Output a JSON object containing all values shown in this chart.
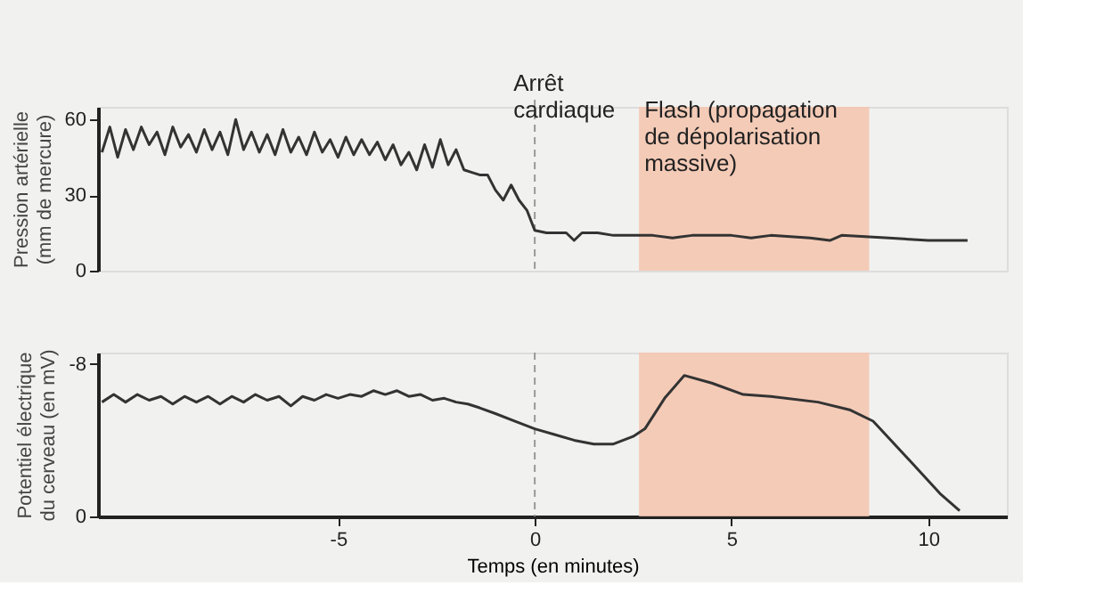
{
  "chart_data": [
    {
      "type": "line",
      "ylabel": "Pression artérielle\n(mm de mercure)",
      "xlim": [
        -11.1,
        12.0
      ],
      "ylim": [
        0,
        65
      ],
      "yticks": [
        0,
        30,
        60
      ],
      "tick_labels": "y",
      "grid": false,
      "x": [
        -11,
        -10.8,
        -10.6,
        -10.4,
        -10.2,
        -10,
        -9.8,
        -9.6,
        -9.4,
        -9.2,
        -9,
        -8.8,
        -8.6,
        -8.4,
        -8.2,
        -8,
        -7.8,
        -7.6,
        -7.4,
        -7.2,
        -7,
        -6.8,
        -6.6,
        -6.4,
        -6.2,
        -6,
        -5.8,
        -5.6,
        -5.4,
        -5.2,
        -5,
        -4.8,
        -4.6,
        -4.4,
        -4.2,
        -4,
        -3.8,
        -3.6,
        -3.4,
        -3.2,
        -3,
        -2.8,
        -2.6,
        -2.4,
        -2.2,
        -2,
        -1.8,
        -1.6,
        -1.4,
        -1.2,
        -1,
        -0.8,
        -0.6,
        -0.4,
        -0.2,
        0,
        0.3,
        0.8,
        1,
        1.2,
        1.6,
        2,
        3,
        3.5,
        4,
        5,
        5.5,
        6,
        7,
        7.5,
        7.8,
        9,
        10,
        11
      ],
      "series": [
        {
          "color": "#333333",
          "values": [
            47,
            57,
            45,
            56,
            48,
            57,
            50,
            55,
            46,
            57,
            49,
            54,
            47,
            56,
            48,
            55,
            46,
            60,
            48,
            55,
            47,
            54,
            46,
            56,
            47,
            53,
            46,
            55,
            47,
            52,
            45,
            53,
            46,
            52,
            46,
            51,
            44,
            50,
            42,
            47,
            40,
            50,
            41,
            52,
            42,
            48,
            40,
            39,
            38,
            38,
            32,
            28,
            34,
            28,
            24,
            16,
            15,
            15,
            12,
            15,
            15,
            14,
            14,
            13,
            14,
            14,
            13,
            14,
            13,
            12,
            14,
            13,
            12,
            12
          ]
        }
      ],
      "ref_lines": [
        {
          "axis": "x",
          "value": 0,
          "label": "Arrêt\ncardiaque",
          "color": "#999999",
          "line_style": "dashed"
        }
      ],
      "bands": [
        {
          "axis": "x",
          "from": 2.65,
          "to": 8.5,
          "label": "Flash (propagation\nde dépolarisation\nmassive)",
          "color": "#f4c4ad"
        }
      ]
    },
    {
      "type": "line",
      "ylabel": "Potentiel électrique\ndu cerveau (en mV)",
      "xlabel": "Temps (en minutes)",
      "xlim": [
        -11.1,
        12.0
      ],
      "ylim": [
        0,
        -8.6
      ],
      "xticks": [
        -5,
        0,
        5,
        10
      ],
      "yticks": [
        0,
        -8
      ],
      "grid": false,
      "x": [
        -11,
        -10.7,
        -10.4,
        -10.1,
        -9.8,
        -9.5,
        -9.2,
        -8.9,
        -8.6,
        -8.3,
        -8,
        -7.7,
        -7.4,
        -7.1,
        -6.8,
        -6.5,
        -6.2,
        -5.9,
        -5.6,
        -5.3,
        -5,
        -4.7,
        -4.4,
        -4.1,
        -3.8,
        -3.5,
        -3.2,
        -2.9,
        -2.6,
        -2.3,
        -2,
        -1.7,
        -1.4,
        -1,
        -0.5,
        0,
        0.5,
        1,
        1.5,
        2,
        2.5,
        2.8,
        3.3,
        3.8,
        4.5,
        5.3,
        6,
        7.2,
        8,
        8.6,
        9.5,
        10.3,
        10.8
      ],
      "series": [
        {
          "color": "#333333",
          "values": [
            -6.0,
            -6.4,
            -6.0,
            -6.4,
            -6.1,
            -6.3,
            -5.9,
            -6.3,
            -6.0,
            -6.3,
            -5.9,
            -6.3,
            -6.0,
            -6.4,
            -6.1,
            -6.3,
            -5.8,
            -6.3,
            -6.1,
            -6.4,
            -6.2,
            -6.4,
            -6.3,
            -6.6,
            -6.4,
            -6.6,
            -6.3,
            -6.4,
            -6.1,
            -6.2,
            -6.0,
            -5.9,
            -5.7,
            -5.4,
            -5.0,
            -4.6,
            -4.3,
            -4.0,
            -3.8,
            -3.8,
            -4.2,
            -4.6,
            -6.2,
            -7.4,
            -7.0,
            -6.4,
            -6.3,
            -6.0,
            -5.6,
            -5.0,
            -3.0,
            -1.2,
            -0.3
          ]
        }
      ],
      "ref_lines": [
        {
          "axis": "x",
          "value": 0,
          "color": "#999999",
          "line_style": "dashed"
        }
      ],
      "bands": [
        {
          "axis": "x",
          "from": 2.65,
          "to": 8.5,
          "color": "#f4c4ad"
        }
      ]
    }
  ]
}
